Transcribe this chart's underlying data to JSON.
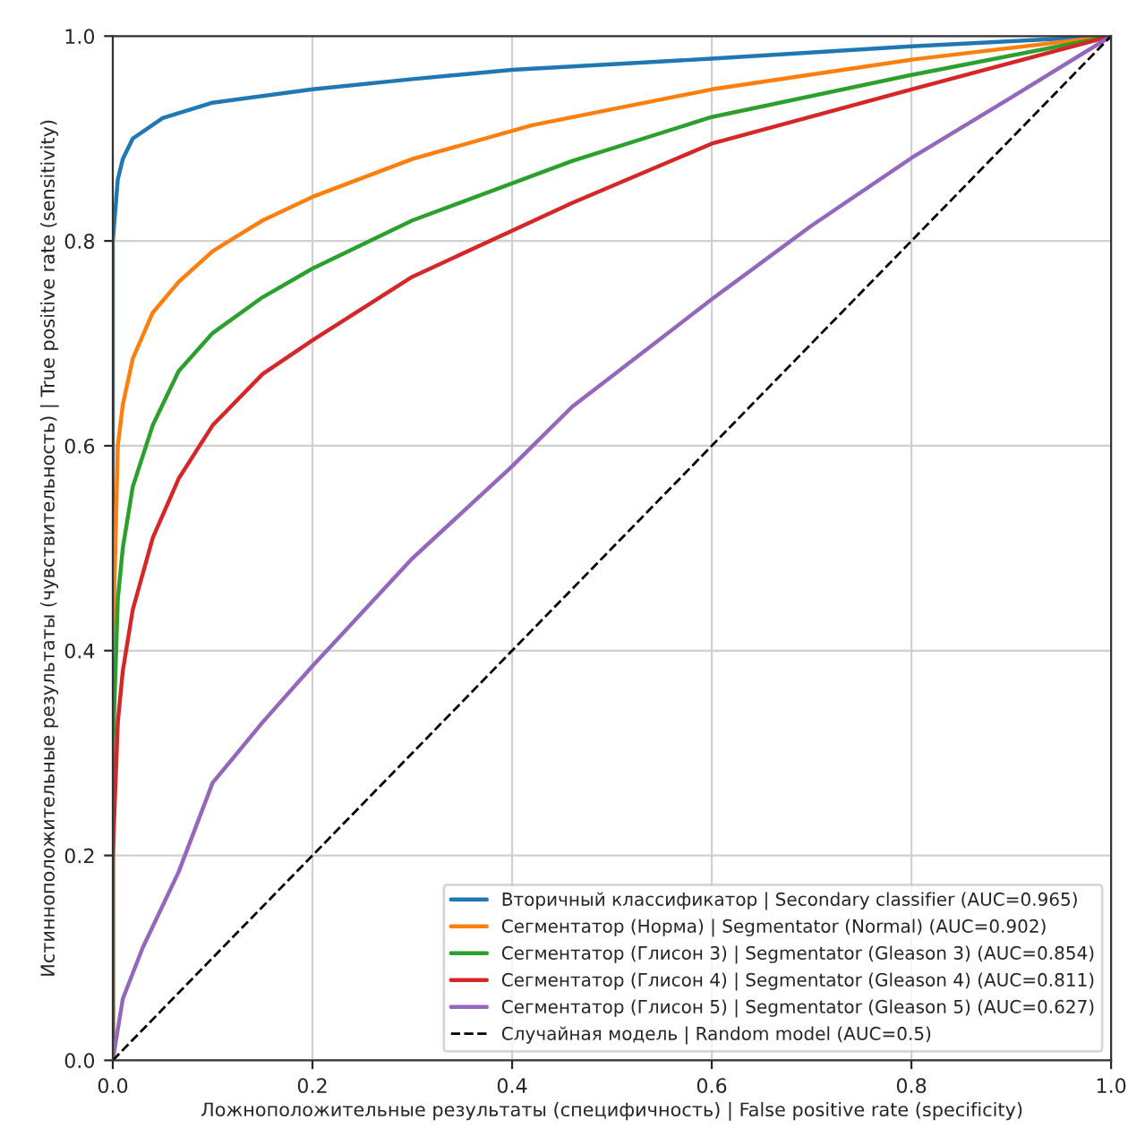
{
  "chart_data": {
    "type": "line",
    "xlabel": "Ложноположительные результаты (специфичность) | False positive rate (specificity)",
    "ylabel": "Истинноположительные результаты (чувствительность) | True positive rate (sensitivity)",
    "xlim": [
      0,
      1
    ],
    "ylim": [
      0,
      1
    ],
    "xticks": [
      {
        "value": 0,
        "label": "0.0"
      },
      0.2,
      0.4,
      0.6,
      0.8,
      {
        "value": 1,
        "label": "1.0"
      }
    ],
    "yticks": [
      {
        "value": 0,
        "label": "0.0"
      },
      0.2,
      0.4,
      0.6,
      0.8,
      {
        "value": 1,
        "label": "1.0"
      }
    ],
    "grid": true,
    "legend": "bottom right",
    "series": [
      {
        "name": "Вторичный классификатор | Secondary classifier (AUC=0.965)",
        "color": "#1f77b4",
        "x": [
          0,
          0,
          0.005,
          0.01,
          0.02,
          0.05,
          0.1,
          0.2,
          0.3,
          0.4,
          0.6,
          0.8,
          1
        ],
        "values": [
          0,
          0.8,
          0.86,
          0.88,
          0.9,
          0.92,
          0.935,
          0.948,
          0.958,
          0.967,
          0.978,
          0.99,
          1
        ]
      },
      {
        "name": "Сегментатор (Норма) | Segmentator (Normal) (AUC=0.902)",
        "color": "#ff7f0e",
        "x": [
          0,
          0,
          0.005,
          0.01,
          0.02,
          0.04,
          0.066,
          0.1,
          0.15,
          0.2,
          0.3,
          0.42,
          0.6,
          0.8,
          1
        ],
        "values": [
          0,
          0.4,
          0.6,
          0.64,
          0.685,
          0.73,
          0.76,
          0.79,
          0.82,
          0.843,
          0.88,
          0.913,
          0.948,
          0.977,
          1
        ]
      },
      {
        "name": "Сегментатор (Глисон 3) | Segmentator (Gleason 3) (AUC=0.854)",
        "color": "#2ca02c",
        "x": [
          0,
          0,
          0.005,
          0.01,
          0.02,
          0.04,
          0.066,
          0.1,
          0.15,
          0.2,
          0.3,
          0.46,
          0.6,
          0.8,
          1
        ],
        "values": [
          0,
          0.3,
          0.45,
          0.5,
          0.56,
          0.62,
          0.673,
          0.71,
          0.745,
          0.773,
          0.82,
          0.878,
          0.921,
          0.962,
          1
        ]
      },
      {
        "name": "Сегментатор (Глисон 4) | Segmentator (Gleason 4) (AUC=0.811)",
        "color": "#d62728",
        "x": [
          0,
          0,
          0.005,
          0.01,
          0.02,
          0.04,
          0.066,
          0.1,
          0.15,
          0.2,
          0.3,
          0.46,
          0.6,
          0.8,
          1
        ],
        "values": [
          0,
          0.2,
          0.33,
          0.38,
          0.44,
          0.51,
          0.568,
          0.62,
          0.67,
          0.703,
          0.765,
          0.837,
          0.895,
          0.948,
          1
        ]
      },
      {
        "name": "Сегментатор (Глисон 5) | Segmentator (Gleason 5) (AUC=0.627)",
        "color": "#9467bd",
        "x": [
          0,
          0.01,
          0.03,
          0.066,
          0.1,
          0.15,
          0.2,
          0.3,
          0.4,
          0.46,
          0.6,
          0.7,
          0.8,
          0.9,
          1
        ],
        "values": [
          0,
          0.06,
          0.11,
          0.184,
          0.271,
          0.33,
          0.385,
          0.49,
          0.58,
          0.638,
          0.743,
          0.815,
          0.881,
          0.94,
          1
        ]
      },
      {
        "name": "Случайная модель | Random model (AUC=0.5)",
        "color": "#000000",
        "line_style": "dashed",
        "x": [
          0,
          1
        ],
        "values": [
          0,
          1
        ]
      }
    ]
  }
}
